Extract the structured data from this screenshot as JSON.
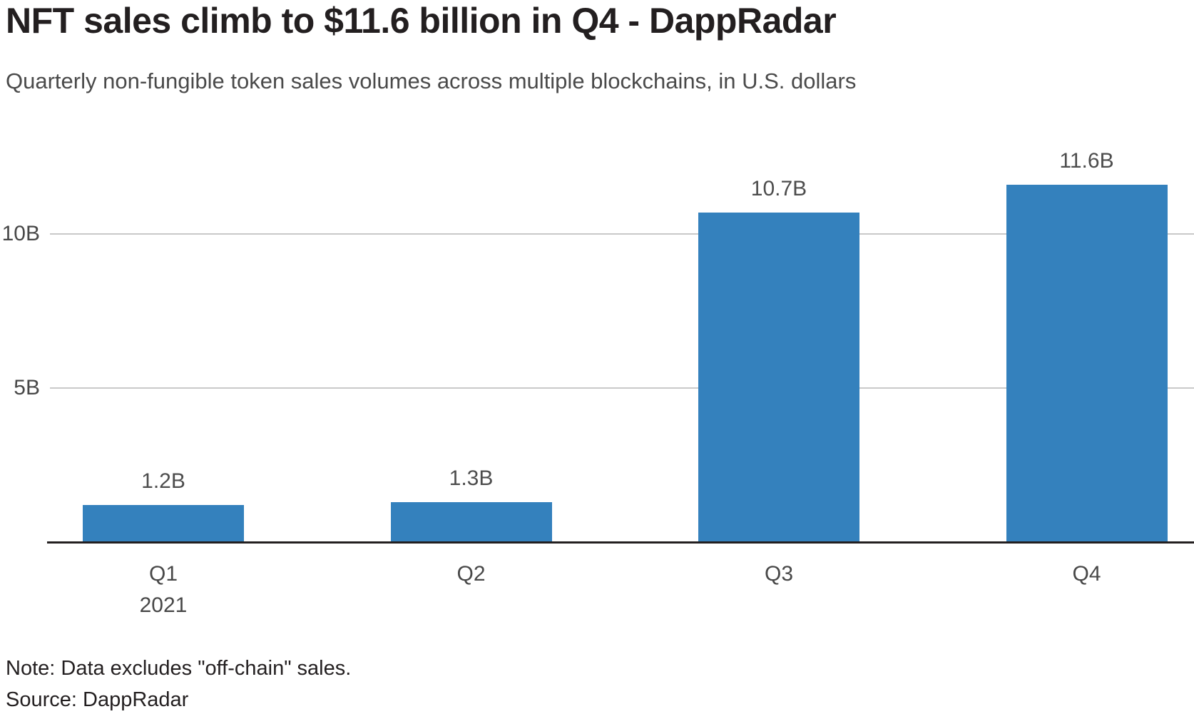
{
  "header": {
    "title": "NFT sales climb to $11.6 billion in Q4 - DappRadar",
    "subtitle": "Quarterly non-fungible token sales volumes across multiple blockchains, in U.S. dollars"
  },
  "chart_data": {
    "type": "bar",
    "title": "NFT sales climb to $11.6 billion in Q4 - DappRadar",
    "subtitle": "Quarterly non-fungible token sales volumes across multiple blockchains, in U.S. dollars",
    "categories": [
      "Q1",
      "Q2",
      "Q3",
      "Q4"
    ],
    "x_axis_year": "2021",
    "values": [
      1.2,
      1.3,
      10.7,
      11.6
    ],
    "bar_labels": [
      "1.2B",
      "1.3B",
      "10.7B",
      "11.6B"
    ],
    "unit": "billions of U.S. dollars",
    "ylim": [
      0,
      12.5
    ],
    "yticks": [
      {
        "value": 5,
        "label": "5B"
      },
      {
        "value": 10,
        "label": "10B"
      }
    ],
    "grid": true,
    "legend": "none",
    "bar_color": "#3481bd"
  },
  "footer": {
    "note": "Note: Data excludes \"off-chain\" sales.",
    "source": "Source: DappRadar"
  },
  "colors": {
    "bar": "#3481bd",
    "axis": "#231f20",
    "gridline": "#c9c9c9",
    "title_text": "#231f20",
    "label_text": "#4d4d4d"
  }
}
